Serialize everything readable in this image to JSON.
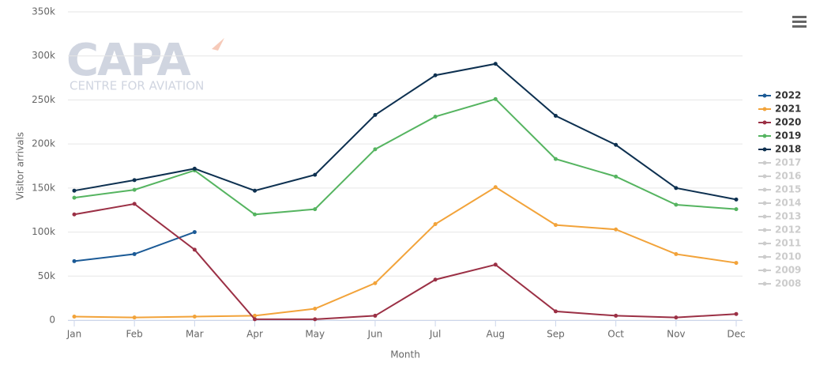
{
  "chart_data": {
    "type": "line",
    "watermark": {
      "logo": "CAPA",
      "subtitle": "CENTRE FOR AVIATION"
    },
    "x_label": "Month",
    "y_label": "Visitor arrivals",
    "categories": [
      "Jan",
      "Feb",
      "Mar",
      "Apr",
      "May",
      "Jun",
      "Jul",
      "Aug",
      "Sep",
      "Oct",
      "Nov",
      "Dec"
    ],
    "ylim": [
      0,
      350000
    ],
    "yticks": [
      {
        "value": 0,
        "label": "0"
      },
      {
        "value": 50000,
        "label": "50k"
      },
      {
        "value": 100000,
        "label": "100k"
      },
      {
        "value": 150000,
        "label": "150k"
      },
      {
        "value": 200000,
        "label": "200k"
      },
      {
        "value": 250000,
        "label": "250k"
      },
      {
        "value": 300000,
        "label": "300k"
      },
      {
        "value": 350000,
        "label": "350k"
      }
    ],
    "grid": true,
    "legend": "right",
    "series": [
      {
        "name": "2022",
        "color": "#1b5a96",
        "visible": true,
        "values": [
          67000,
          75000,
          100000,
          null,
          null,
          null,
          null,
          null,
          null,
          null,
          null,
          null
        ]
      },
      {
        "name": "2021",
        "color": "#f2a33a",
        "visible": true,
        "values": [
          4000,
          3000,
          4000,
          5000,
          13000,
          42000,
          109000,
          151000,
          108000,
          103000,
          75000,
          65000
        ]
      },
      {
        "name": "2020",
        "color": "#9b3045",
        "visible": true,
        "values": [
          120000,
          132000,
          80000,
          1000,
          1000,
          5000,
          46000,
          63000,
          10000,
          5000,
          3000,
          7000
        ]
      },
      {
        "name": "2019",
        "color": "#55b460",
        "visible": true,
        "values": [
          139000,
          148000,
          170000,
          120000,
          126000,
          194000,
          231000,
          251000,
          183000,
          163000,
          131000,
          126000
        ]
      },
      {
        "name": "2018",
        "color": "#0d3050",
        "visible": true,
        "values": [
          147000,
          159000,
          172000,
          147000,
          165000,
          233000,
          278000,
          291000,
          232000,
          199000,
          150000,
          137000
        ]
      },
      {
        "name": "2017",
        "color": "#cccccc",
        "visible": false,
        "values": [
          null,
          null,
          null,
          null,
          null,
          null,
          null,
          null,
          null,
          null,
          null,
          null
        ]
      },
      {
        "name": "2016",
        "color": "#cccccc",
        "visible": false,
        "values": [
          null,
          null,
          null,
          null,
          null,
          null,
          null,
          null,
          null,
          null,
          null,
          null
        ]
      },
      {
        "name": "2015",
        "color": "#cccccc",
        "visible": false,
        "values": [
          null,
          null,
          null,
          null,
          null,
          null,
          null,
          null,
          null,
          null,
          null,
          null
        ]
      },
      {
        "name": "2014",
        "color": "#cccccc",
        "visible": false,
        "values": [
          null,
          null,
          null,
          null,
          null,
          null,
          null,
          null,
          null,
          null,
          null,
          null
        ]
      },
      {
        "name": "2013",
        "color": "#cccccc",
        "visible": false,
        "values": [
          null,
          null,
          null,
          null,
          null,
          null,
          null,
          null,
          null,
          null,
          null,
          null
        ]
      },
      {
        "name": "2012",
        "color": "#cccccc",
        "visible": false,
        "values": [
          null,
          null,
          null,
          null,
          null,
          null,
          null,
          null,
          null,
          null,
          null,
          null
        ]
      },
      {
        "name": "2011",
        "color": "#cccccc",
        "visible": false,
        "values": [
          null,
          null,
          null,
          null,
          null,
          null,
          null,
          null,
          null,
          null,
          null,
          null
        ]
      },
      {
        "name": "2010",
        "color": "#cccccc",
        "visible": false,
        "values": [
          null,
          null,
          null,
          null,
          null,
          null,
          null,
          null,
          null,
          null,
          null,
          null
        ]
      },
      {
        "name": "2009",
        "color": "#cccccc",
        "visible": false,
        "values": [
          null,
          null,
          null,
          null,
          null,
          null,
          null,
          null,
          null,
          null,
          null,
          null
        ]
      },
      {
        "name": "2008",
        "color": "#cccccc",
        "visible": false,
        "values": [
          null,
          null,
          null,
          null,
          null,
          null,
          null,
          null,
          null,
          null,
          null,
          null
        ]
      }
    ]
  }
}
